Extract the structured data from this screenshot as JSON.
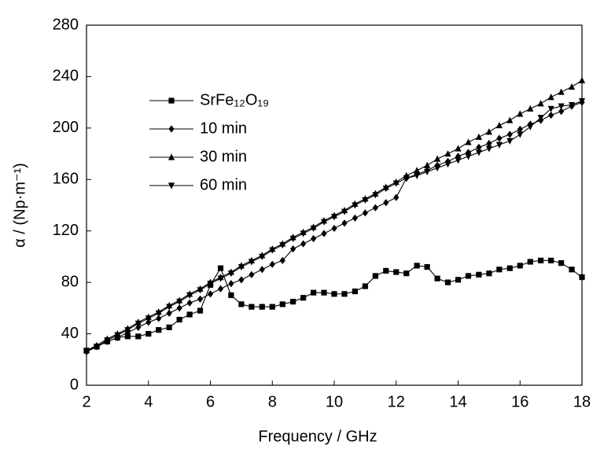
{
  "chart_data": {
    "type": "line",
    "xlabel": "Frequency / GHz",
    "ylabel": "α / (Np·m⁻¹)",
    "x": [
      2,
      2.33,
      2.67,
      3,
      3.33,
      3.67,
      4,
      4.33,
      4.67,
      5,
      5.33,
      5.67,
      6,
      6.33,
      6.67,
      7,
      7.33,
      7.67,
      8,
      8.33,
      8.67,
      9,
      9.33,
      9.67,
      10,
      10.33,
      10.67,
      11,
      11.33,
      11.67,
      12,
      12.33,
      12.67,
      13,
      13.33,
      13.67,
      14,
      14.33,
      14.67,
      15,
      15.33,
      15.67,
      16,
      16.33,
      16.67,
      17,
      17.33,
      17.67,
      18
    ],
    "series": [
      {
        "name": "SrFe₁₂O₁₉",
        "color": "#000000",
        "marker": "square",
        "values": [
          27,
          30,
          34,
          37,
          38,
          38,
          40,
          43,
          45,
          51,
          55,
          58,
          78,
          91,
          70,
          63,
          61,
          61,
          61,
          63,
          65,
          68,
          72,
          72,
          71,
          71,
          73,
          77,
          85,
          89,
          88,
          87,
          93,
          92,
          83,
          80,
          82,
          85,
          86,
          87,
          90,
          91,
          93,
          96,
          97,
          97,
          95,
          90,
          84
        ]
      },
      {
        "name": "10 min",
        "color": "#000000",
        "marker": "diamond",
        "values": [
          26,
          30,
          34,
          37,
          41,
          45,
          49,
          52,
          56,
          60,
          64,
          67,
          71,
          75,
          79,
          82,
          86,
          90,
          94,
          97,
          106,
          110,
          114,
          118,
          122,
          126,
          130,
          134,
          138,
          142,
          146,
          161,
          164,
          167,
          171,
          174,
          178,
          181,
          185,
          188,
          192,
          195,
          199,
          203,
          206,
          210,
          213,
          217,
          220
        ]
      },
      {
        "name": "30 min",
        "color": "#000000",
        "marker": "triangle-up",
        "values": [
          27,
          31,
          36,
          40,
          44,
          49,
          53,
          57,
          62,
          66,
          71,
          75,
          80,
          84,
          88,
          93,
          97,
          101,
          106,
          110,
          115,
          119,
          123,
          128,
          132,
          136,
          141,
          145,
          149,
          154,
          158,
          163,
          167,
          171,
          176,
          180,
          184,
          189,
          193,
          197,
          202,
          206,
          211,
          215,
          219,
          224,
          228,
          232,
          237
        ]
      },
      {
        "name": "60 min",
        "color": "#000000",
        "marker": "triangle-down",
        "values": [
          26,
          30,
          35,
          39,
          43,
          48,
          52,
          56,
          61,
          65,
          70,
          74,
          79,
          83,
          87,
          92,
          96,
          100,
          105,
          109,
          114,
          118,
          122,
          127,
          131,
          135,
          140,
          144,
          148,
          153,
          157,
          161,
          163,
          166,
          169,
          172,
          175,
          178,
          181,
          184,
          187,
          190,
          195,
          201,
          208,
          215,
          217,
          218,
          221
        ]
      }
    ],
    "xlim": [
      2,
      18
    ],
    "xticks": [
      2,
      4,
      6,
      8,
      10,
      12,
      14,
      16,
      18
    ],
    "ylim": [
      0,
      280
    ],
    "yticks": [
      0,
      40,
      80,
      120,
      160,
      200,
      240,
      280
    ],
    "grid": false,
    "legend": "upper left"
  }
}
